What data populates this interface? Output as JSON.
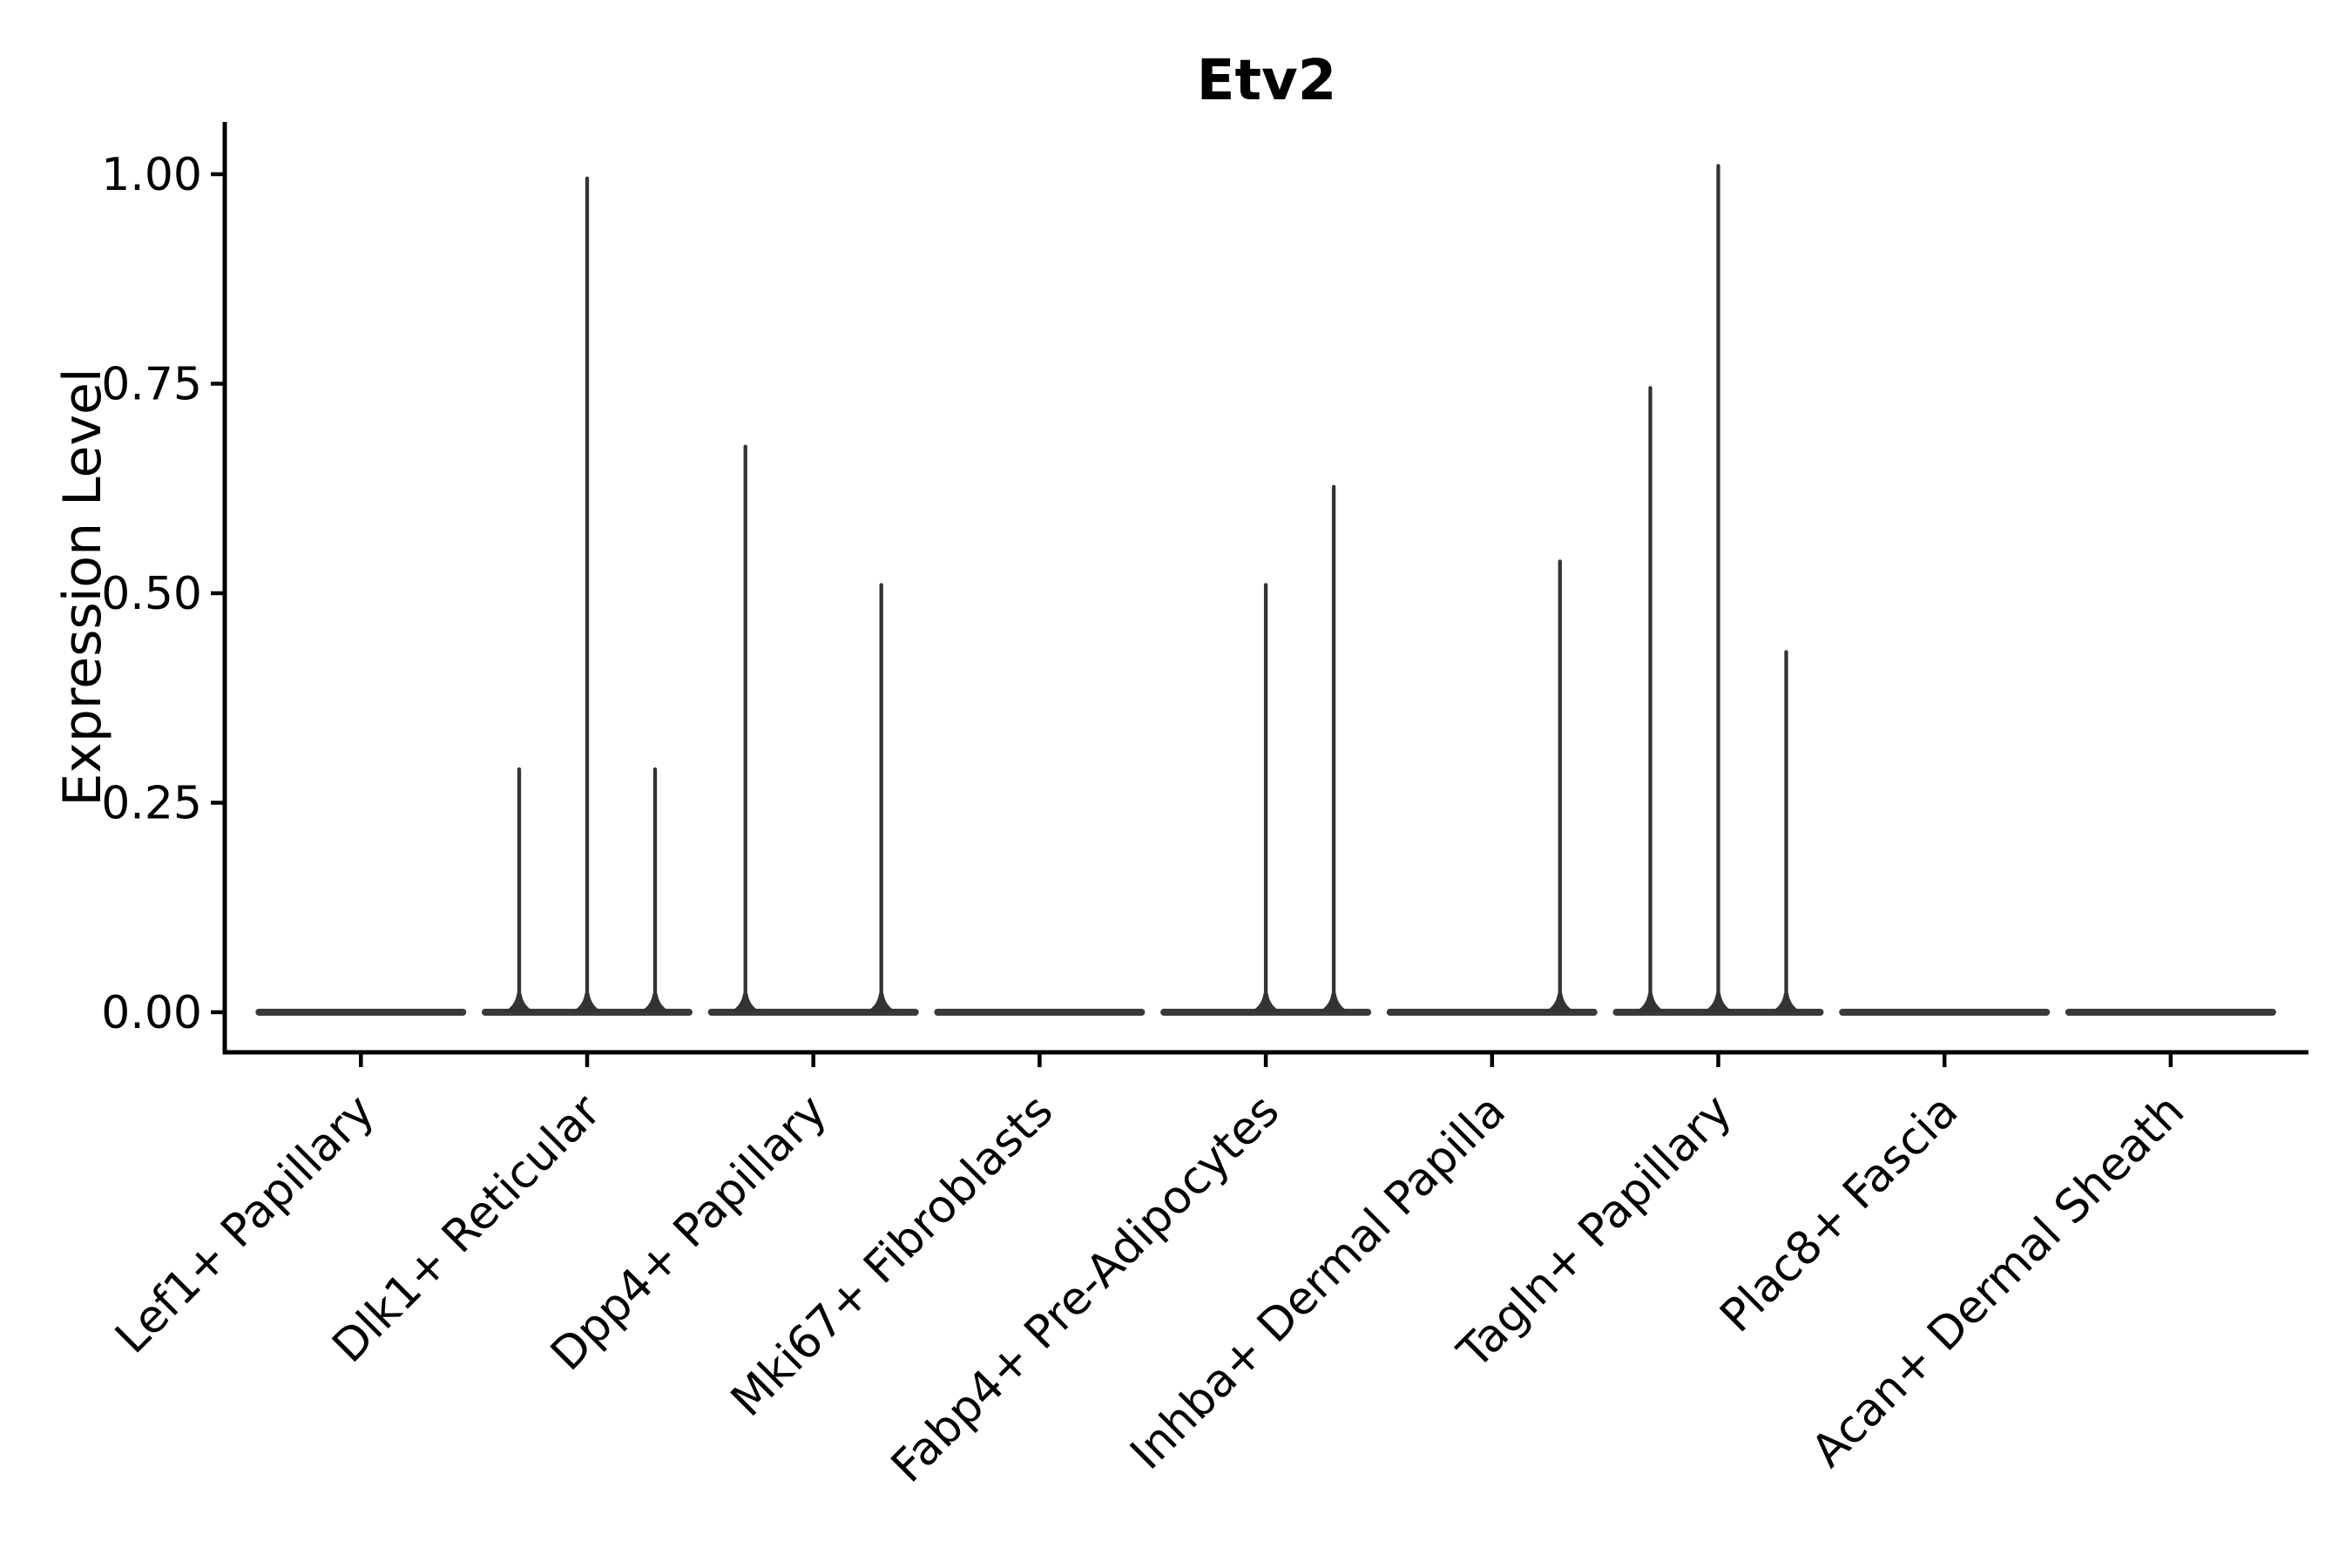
{
  "chart_data": {
    "type": "violin",
    "title": "Etv2",
    "xlabel": "",
    "ylabel": "Expression Level",
    "categories": [
      "Lef1+ Papillary",
      "Dlk1+ Reticular",
      "Dpp4+ Papillary",
      "Mki67+ Fibroblasts",
      "Fabp4+ Pre-Adipocytes",
      "Inhba+ Dermal Papilla",
      "Tagln+ Papillary",
      "Plac8+ Fascia",
      "Acan+ Dermal Sheath"
    ],
    "sub_violins_per_category": 3,
    "spike_values": [
      [
        0,
        0,
        0
      ],
      [
        0.29,
        0.995,
        0.29
      ],
      [
        0.675,
        0,
        0.51
      ],
      [
        0,
        0,
        0
      ],
      [
        0,
        0.51,
        0.627
      ],
      [
        0,
        0,
        0.538
      ],
      [
        0.745,
        1.01,
        0.43
      ],
      [
        0,
        0,
        0
      ],
      [
        0,
        0,
        0
      ]
    ],
    "baseline_value": 0,
    "ytick_labels": [
      "0.00",
      "0.25",
      "0.50",
      "0.75",
      "1.00"
    ],
    "ytick_values": [
      0,
      0.25,
      0.5,
      0.75,
      1.0
    ],
    "ylim": [
      -0.048,
      1.062
    ],
    "grid": false,
    "legend": "none",
    "xtick_rotation_deg": 45,
    "colors": {
      "violin": "#333333",
      "violin_baseline": "#3a3a3a",
      "axis": "#000000",
      "text": "#000000",
      "background": "#ffffff"
    }
  }
}
